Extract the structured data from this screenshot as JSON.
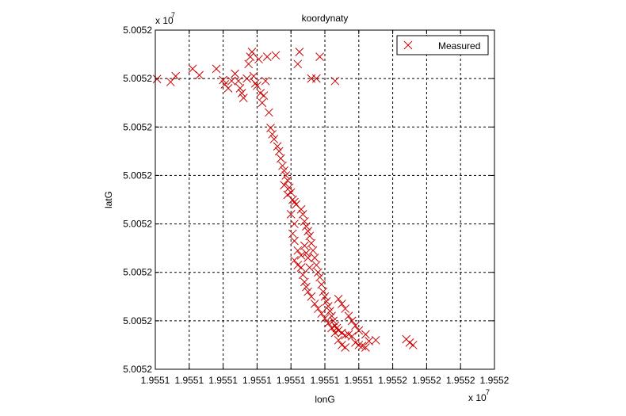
{
  "chart_data": {
    "type": "scatter",
    "title": "koordynaty",
    "xlabel": "lonG",
    "ylabel": "latG",
    "x_exponent": "x 10",
    "x_exponent_power": "7",
    "y_exponent": "x 10",
    "y_exponent_power": "7",
    "x_tick_labels": [
      "1.9551",
      "1.9551",
      "1.9551",
      "1.9551",
      "1.9551",
      "1.9551",
      "1.9551",
      "1.9552",
      "1.9552",
      "1.9552",
      "1.9552"
    ],
    "y_tick_labels": [
      "5.0052",
      "5.0052",
      "5.0052",
      "5.0052",
      "5.0052",
      "5.0052",
      "5.0052",
      "5.0052"
    ],
    "xlim": [
      0,
      10
    ],
    "ylim": [
      0,
      7
    ],
    "grid": true,
    "legend_position": "top-right",
    "marker": "x",
    "color": "#cc0000",
    "series": [
      {
        "name": "Measured",
        "points": [
          [
            0.05,
            5.99
          ],
          [
            0.45,
            5.93
          ],
          [
            0.6,
            6.05
          ],
          [
            1.1,
            6.2
          ],
          [
            1.3,
            6.07
          ],
          [
            1.8,
            6.2
          ],
          [
            2.0,
            5.97
          ],
          [
            2.05,
            5.88
          ],
          [
            2.15,
            5.8
          ],
          [
            2.25,
            5.95
          ],
          [
            2.35,
            6.1
          ],
          [
            2.45,
            5.95
          ],
          [
            2.5,
            5.8
          ],
          [
            2.55,
            5.7
          ],
          [
            2.6,
            5.6
          ],
          [
            2.7,
            6.0
          ],
          [
            2.75,
            6.3
          ],
          [
            2.8,
            6.45
          ],
          [
            2.85,
            6.55
          ],
          [
            2.9,
            6.05
          ],
          [
            2.95,
            5.9
          ],
          [
            3.0,
            5.85
          ],
          [
            3.05,
            6.4
          ],
          [
            3.1,
            5.7
          ],
          [
            3.15,
            5.5
          ],
          [
            3.2,
            5.65
          ],
          [
            3.25,
            5.95
          ],
          [
            3.3,
            6.45
          ],
          [
            3.35,
            5.3
          ],
          [
            3.4,
            4.98
          ],
          [
            3.45,
            4.85
          ],
          [
            3.5,
            4.75
          ],
          [
            3.55,
            6.48
          ],
          [
            3.6,
            4.6
          ],
          [
            3.65,
            4.5
          ],
          [
            3.7,
            4.35
          ],
          [
            3.75,
            4.2
          ],
          [
            3.8,
            4.1
          ],
          [
            3.85,
            4.0
          ],
          [
            3.9,
            3.9
          ],
          [
            3.95,
            3.75
          ],
          [
            4.0,
            3.65
          ],
          [
            4.05,
            3.5
          ],
          [
            4.1,
            3.45
          ],
          [
            4.15,
            3.4
          ],
          [
            4.2,
            6.3
          ],
          [
            4.25,
            6.55
          ],
          [
            4.3,
            3.3
          ],
          [
            4.35,
            3.2
          ],
          [
            4.4,
            3.05
          ],
          [
            4.45,
            2.95
          ],
          [
            4.5,
            2.85
          ],
          [
            4.55,
            2.75
          ],
          [
            4.6,
            2.6
          ],
          [
            4.65,
            2.45
          ],
          [
            4.7,
            2.3
          ],
          [
            4.75,
            2.15
          ],
          [
            4.8,
            2.0
          ],
          [
            4.85,
            1.9
          ],
          [
            4.9,
            1.75
          ],
          [
            4.95,
            1.6
          ],
          [
            5.0,
            1.5
          ],
          [
            5.05,
            1.4
          ],
          [
            5.1,
            1.3
          ],
          [
            5.15,
            1.2
          ],
          [
            5.2,
            1.1
          ],
          [
            5.25,
            1.0
          ],
          [
            5.3,
            0.9
          ],
          [
            5.35,
            0.85
          ],
          [
            5.4,
            0.8
          ],
          [
            5.5,
            0.75
          ],
          [
            5.6,
            0.7
          ],
          [
            5.7,
            0.72
          ],
          [
            5.8,
            0.68
          ],
          [
            5.9,
            0.55
          ],
          [
            6.0,
            0.5
          ],
          [
            6.1,
            0.48
          ],
          [
            6.2,
            0.45
          ],
          [
            4.4,
            2.55
          ],
          [
            4.45,
            2.4
          ],
          [
            4.5,
            2.3
          ],
          [
            4.55,
            2.1
          ],
          [
            4.3,
            2.1
          ],
          [
            4.35,
            1.95
          ],
          [
            4.4,
            1.8
          ],
          [
            4.45,
            1.7
          ],
          [
            4.5,
            1.6
          ],
          [
            4.6,
            1.5
          ],
          [
            4.7,
            1.35
          ],
          [
            4.8,
            1.25
          ],
          [
            4.9,
            1.15
          ],
          [
            5.0,
            1.05
          ],
          [
            5.1,
            0.95
          ],
          [
            5.2,
            0.85
          ],
          [
            5.3,
            0.75
          ],
          [
            5.4,
            0.6
          ],
          [
            5.5,
            0.5
          ],
          [
            5.6,
            0.45
          ],
          [
            4.6,
            6.0
          ],
          [
            4.75,
            6.0
          ],
          [
            4.85,
            6.45
          ],
          [
            5.3,
            5.95
          ],
          [
            5.4,
            1.45
          ],
          [
            5.5,
            1.35
          ],
          [
            5.6,
            1.25
          ],
          [
            5.7,
            1.1
          ],
          [
            5.8,
            1.0
          ],
          [
            5.9,
            0.9
          ],
          [
            6.0,
            0.8
          ],
          [
            6.2,
            0.72
          ],
          [
            6.3,
            0.58
          ],
          [
            6.5,
            0.6
          ],
          [
            7.4,
            0.62
          ],
          [
            7.5,
            0.55
          ],
          [
            7.6,
            0.5
          ],
          [
            3.8,
            3.8
          ],
          [
            3.9,
            3.6
          ],
          [
            4.0,
            3.2
          ],
          [
            4.1,
            3.0
          ],
          [
            4.05,
            2.8
          ],
          [
            4.1,
            2.65
          ],
          [
            4.2,
            2.45
          ],
          [
            4.3,
            2.35
          ],
          [
            4.1,
            2.25
          ],
          [
            4.2,
            2.15
          ]
        ]
      }
    ]
  }
}
